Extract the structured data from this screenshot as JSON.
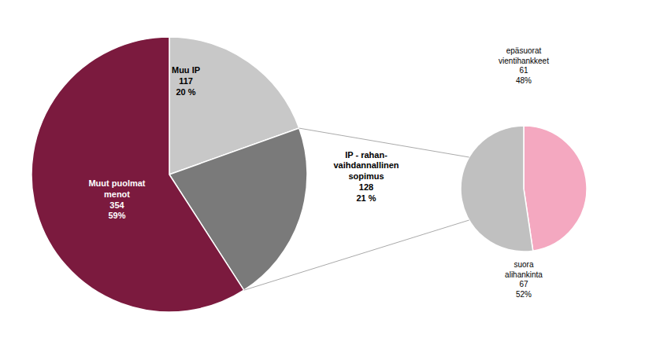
{
  "chart_data": [
    {
      "type": "pie",
      "categories": [
        "Muu IP",
        "IP - rahan-\nvaihdannallinen\nsopimus",
        "Muut puolmat\nmenot"
      ],
      "values": [
        117,
        128,
        354
      ],
      "shares": [
        20,
        21,
        59
      ],
      "share_labels": [
        "20 %",
        "21 %",
        "59%"
      ],
      "colors": [
        "#C8C8C8",
        "#7A7A7A",
        "#7B1A3E"
      ]
    },
    {
      "type": "pie",
      "categories": [
        "epäsuorat\nvientihankkeet",
        "suora\nalihankinta"
      ],
      "values": [
        61,
        67
      ],
      "shares": [
        48,
        52
      ],
      "share_labels": [
        "48%",
        "52%"
      ],
      "colors": [
        "#F4A8C0",
        "#C0C0C0"
      ]
    }
  ]
}
